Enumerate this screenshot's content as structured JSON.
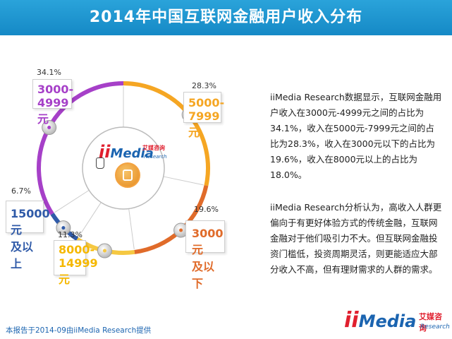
{
  "title": "2014年中国互联网金融用户收入分布",
  "chart_data": {
    "type": "pie",
    "series": [
      {
        "pct": "28.3%",
        "value": 28.3,
        "range": "5000-\n7999元",
        "color": "#f5a623"
      },
      {
        "pct": "19.6%",
        "value": 19.6,
        "range": "3000元\n及以下",
        "color": "#e06b2a"
      },
      {
        "pct": "11.3%",
        "value": 11.3,
        "range": "8000-\n14999\n元",
        "color": "#f5c842"
      },
      {
        "pct": "6.7%",
        "value": 6.7,
        "range": "15000元\n及以上",
        "color": "#2f5aa8"
      },
      {
        "pct": "34.1%",
        "value": 34.1,
        "range": "3000-\n4999元",
        "color": "#a640c8"
      }
    ]
  },
  "paragraph1": "iiMedia Research数据显示，互联网金融用户收入在3000元-4999元之间的占比为34.1%，收入在5000元-7999元之间的占比为28.3%，收入在3000元以下的占比为19.6%，收入在8000元以上的占比为18.0%。",
  "paragraph2": "iiMedia Research分析认为，高收入人群更偏向于有更好体验方式的传统金融，互联网金融对于他们吸引力不大。但互联网金融投资门槛低，投资周期灵活，则更能适应大部分收入不高，但有理财需求的人群的需求。",
  "footer": "本报告于2014-09由iiMedia Research提供",
  "logo": {
    "ii": "ii",
    "media": "Media",
    "cn": "艾媒咨询",
    "sub": "Research"
  }
}
